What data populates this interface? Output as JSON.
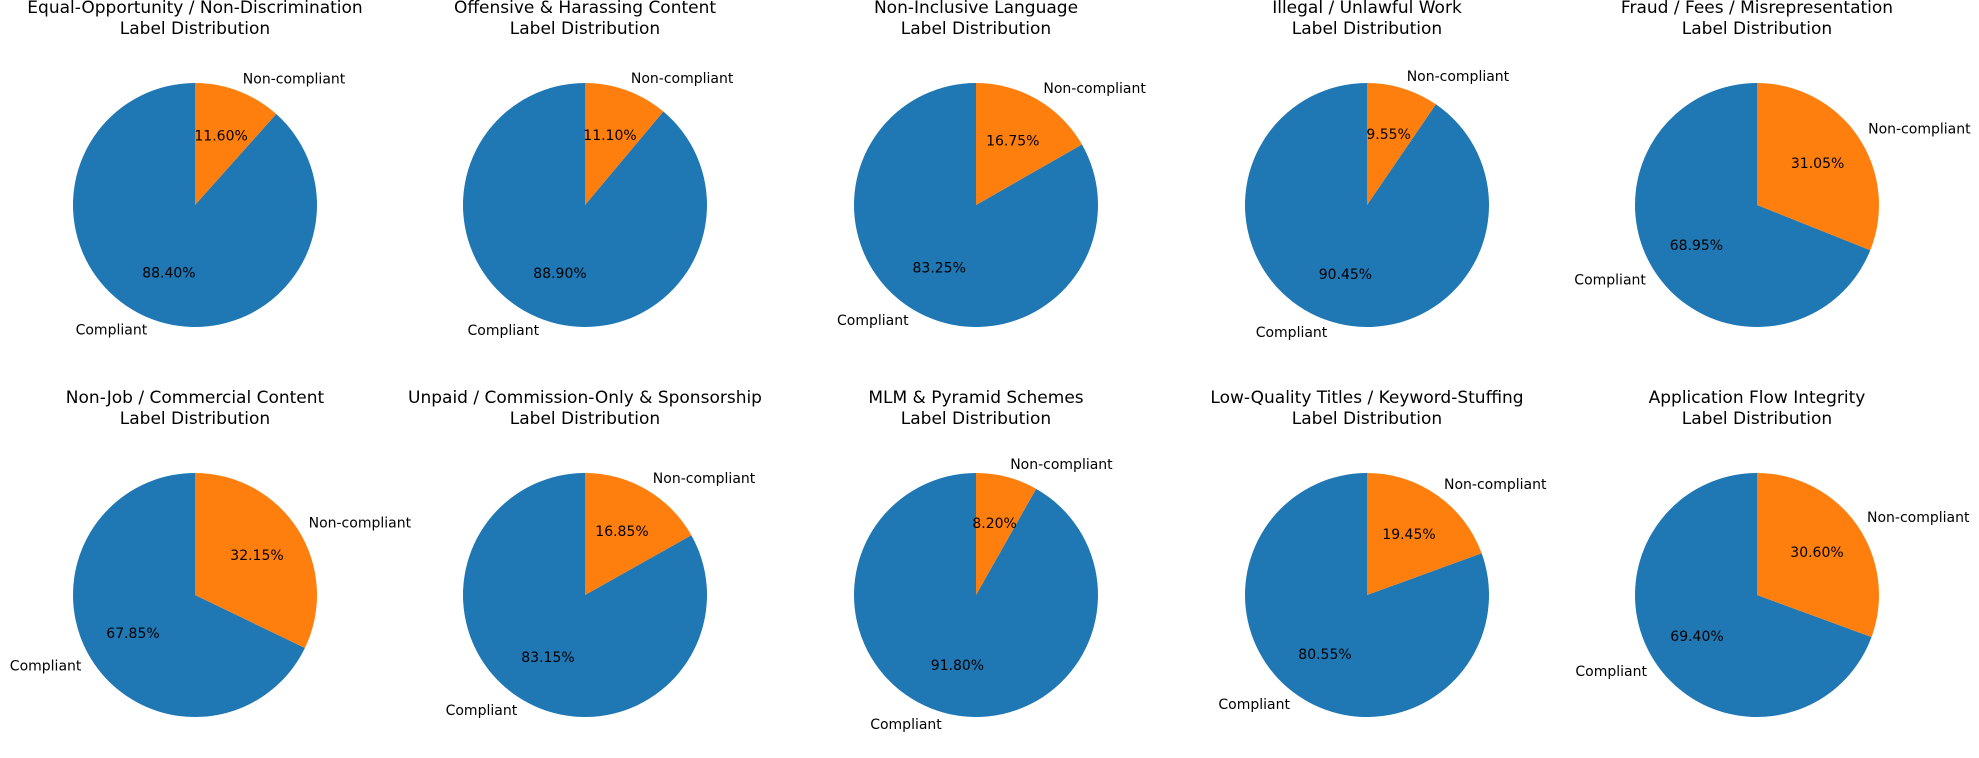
{
  "colors": {
    "compliant": "#1f77b4",
    "non_compliant": "#ff7f0e"
  },
  "chart_data": [
    {
      "type": "pie",
      "title_line1": "Equal-Opportunity / Non-Discrimination",
      "title_line2": "Label Distribution",
      "labels": [
        "Compliant",
        "Non-compliant"
      ],
      "values": [
        88.4,
        11.6
      ],
      "pct_text": [
        "88.40%",
        "11.60%"
      ]
    },
    {
      "type": "pie",
      "title_line1": "Offensive & Harassing Content",
      "title_line2": "Label Distribution",
      "labels": [
        "Compliant",
        "Non-compliant"
      ],
      "values": [
        88.9,
        11.1
      ],
      "pct_text": [
        "88.90%",
        "11.10%"
      ]
    },
    {
      "type": "pie",
      "title_line1": "Non-Inclusive Language",
      "title_line2": "Label Distribution",
      "labels": [
        "Compliant",
        "Non-compliant"
      ],
      "values": [
        83.25,
        16.75
      ],
      "pct_text": [
        "83.25%",
        "16.75%"
      ]
    },
    {
      "type": "pie",
      "title_line1": "Illegal / Unlawful Work",
      "title_line2": "Label Distribution",
      "labels": [
        "Compliant",
        "Non-compliant"
      ],
      "values": [
        90.45,
        9.55
      ],
      "pct_text": [
        "90.45%",
        "9.55%"
      ]
    },
    {
      "type": "pie",
      "title_line1": "Fraud / Fees / Misrepresentation",
      "title_line2": "Label Distribution",
      "labels": [
        "Compliant",
        "Non-compliant"
      ],
      "values": [
        68.95,
        31.05
      ],
      "pct_text": [
        "68.95%",
        "31.05%"
      ]
    },
    {
      "type": "pie",
      "title_line1": "Non-Job / Commercial Content",
      "title_line2": "Label Distribution",
      "labels": [
        "Compliant",
        "Non-compliant"
      ],
      "values": [
        67.85,
        32.15
      ],
      "pct_text": [
        "67.85%",
        "32.15%"
      ]
    },
    {
      "type": "pie",
      "title_line1": "Unpaid / Commission-Only & Sponsorship",
      "title_line2": "Label Distribution",
      "labels": [
        "Compliant",
        "Non-compliant"
      ],
      "values": [
        83.15,
        16.85
      ],
      "pct_text": [
        "83.15%",
        "16.85%"
      ]
    },
    {
      "type": "pie",
      "title_line1": "MLM & Pyramid Schemes",
      "title_line2": "Label Distribution",
      "labels": [
        "Compliant",
        "Non-compliant"
      ],
      "values": [
        91.8,
        8.2
      ],
      "pct_text": [
        "91.80%",
        "8.20%"
      ]
    },
    {
      "type": "pie",
      "title_line1": "Low-Quality Titles / Keyword-Stuffing",
      "title_line2": "Label Distribution",
      "labels": [
        "Compliant",
        "Non-compliant"
      ],
      "values": [
        80.55,
        19.45
      ],
      "pct_text": [
        "80.55%",
        "19.45%"
      ]
    },
    {
      "type": "pie",
      "title_line1": "Application Flow Integrity",
      "title_line2": "Label Distribution",
      "labels": [
        "Compliant",
        "Non-compliant"
      ],
      "values": [
        69.4,
        30.6
      ],
      "pct_text": [
        "69.40%",
        "30.60%"
      ]
    }
  ]
}
